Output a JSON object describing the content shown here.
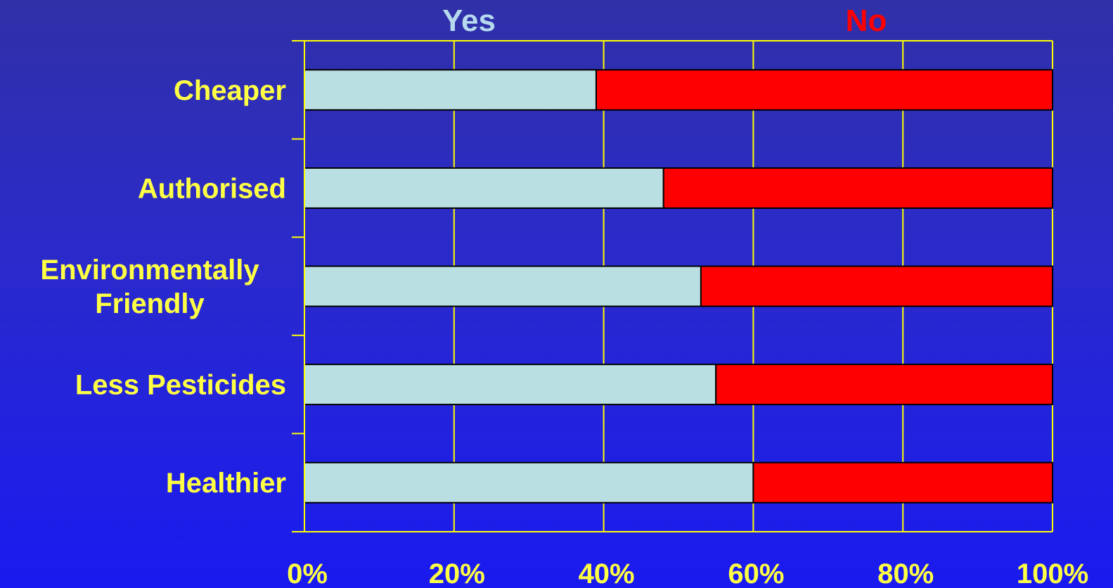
{
  "chart_data": {
    "type": "bar",
    "orientation": "horizontal",
    "stacked": true,
    "percent_stacked": true,
    "categories": [
      "Cheaper",
      "Authorised",
      "Environmentally Friendly",
      "Less Pesticides",
      "Healthier"
    ],
    "category_lines": [
      [
        "Cheaper"
      ],
      [
        "Authorised"
      ],
      [
        "Environmentally",
        "Friendly"
      ],
      [
        "Less Pesticides"
      ],
      [
        "Healthier"
      ]
    ],
    "series": [
      {
        "name": "Yes",
        "values": [
          39,
          48,
          53,
          55,
          60
        ],
        "color": "#b9dfe2"
      },
      {
        "name": "No",
        "values": [
          61,
          52,
          47,
          45,
          40
        ],
        "color": "#ff0000"
      }
    ],
    "xlim": [
      0,
      100
    ],
    "x_ticks": [
      0,
      20,
      40,
      60,
      80,
      100
    ],
    "x_tick_labels": [
      "0%",
      "20%",
      "40%",
      "60%",
      "80%",
      "100%"
    ],
    "grid": true,
    "legend_position": "top",
    "colors": {
      "axis": "#ffff00",
      "grid": "#ffff00",
      "label_text": "#ffff44",
      "yes_legend": "#b7d9ee",
      "no_legend": "#ff0000",
      "bar_border": "#000000"
    }
  }
}
